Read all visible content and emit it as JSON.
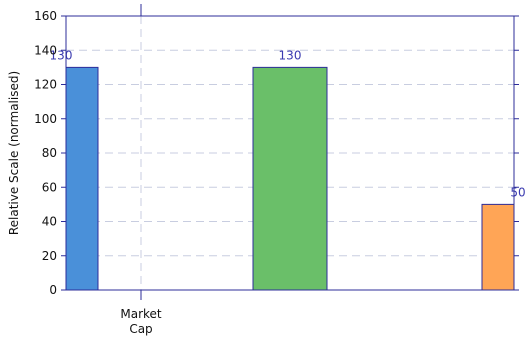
{
  "chart_data": {
    "type": "bar",
    "title": "",
    "xlabel": "",
    "ylabel": "Relative Scale (normalised)",
    "ylim": [
      0,
      160
    ],
    "yticks": [
      0,
      20,
      40,
      60,
      80,
      100,
      120,
      140,
      160
    ],
    "grid": true,
    "categories": [
      "Market Cap"
    ],
    "bars": [
      {
        "value": 130,
        "label": "130",
        "color": "#4a90d9"
      },
      {
        "value": 130,
        "label": "130",
        "color": "#6abf69"
      },
      {
        "value": 50,
        "label": "50",
        "color": "#ffa556"
      }
    ],
    "edge_color": "#2c2c9a"
  }
}
